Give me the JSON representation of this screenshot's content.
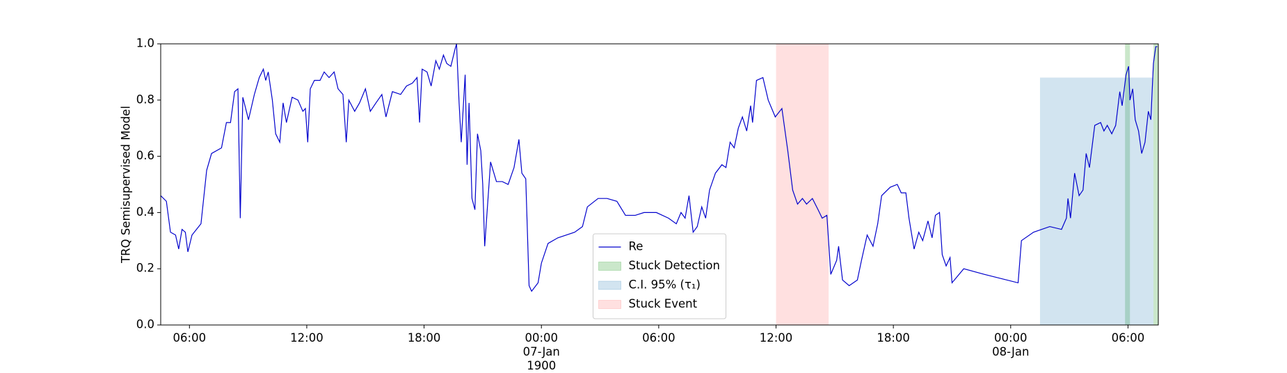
{
  "chart_data": {
    "type": "line",
    "ylabel": "TRQ Semisupervised Model",
    "x": [
      4.53,
      4.82,
      5.03,
      5.29,
      5.45,
      5.62,
      5.79,
      5.92,
      6.13,
      6.59,
      6.88,
      7.13,
      7.64,
      7.89,
      8.1,
      8.31,
      8.48,
      8.6,
      8.73,
      9.02,
      9.32,
      9.57,
      9.78,
      9.9,
      10.03,
      10.24,
      10.41,
      10.62,
      10.79,
      10.96,
      11.25,
      11.55,
      11.8,
      11.93,
      12.05,
      12.18,
      12.39,
      12.68,
      12.89,
      13.14,
      13.4,
      13.6,
      13.85,
      14.02,
      14.15,
      14.45,
      14.7,
      15.0,
      15.25,
      15.54,
      15.84,
      16.05,
      16.38,
      16.8,
      17.1,
      17.4,
      17.64,
      17.77,
      17.9,
      18.15,
      18.36,
      18.6,
      18.78,
      18.99,
      19.16,
      19.37,
      19.58,
      19.66,
      19.79,
      19.9,
      20.1,
      20.2,
      20.3,
      20.45,
      20.6,
      20.73,
      20.9,
      21.0,
      21.1,
      21.4,
      21.7,
      22.0,
      22.3,
      22.6,
      22.85,
      23.0,
      23.2,
      23.37,
      23.5,
      23.83,
      24.0,
      24.34,
      24.84,
      25.7,
      26.1,
      26.35,
      26.9,
      27.36,
      27.86,
      28.3,
      28.8,
      29.25,
      29.88,
      30.5,
      30.9,
      31.14,
      31.35,
      31.55,
      31.76,
      31.97,
      32.2,
      32.4,
      32.6,
      32.9,
      33.23,
      33.44,
      33.65,
      33.86,
      34.07,
      34.28,
      34.5,
      34.7,
      34.8,
      35.0,
      35.33,
      35.6,
      35.96,
      36.3,
      36.6,
      36.85,
      37.1,
      37.35,
      37.56,
      37.86,
      38.15,
      38.36,
      38.6,
      38.8,
      39.1,
      39.2,
      39.4,
      39.74,
      40.16,
      40.37,
      40.66,
      40.96,
      41.2,
      41.4,
      41.84,
      42.2,
      42.4,
      42.64,
      42.8,
      43.06,
      43.3,
      43.5,
      43.77,
      43.98,
      44.15,
      44.36,
      44.5,
      44.7,
      44.9,
      45.0,
      45.6,
      46.66,
      48.38,
      48.55,
      49.17,
      50.0,
      50.6,
      50.85,
      50.93,
      51.06,
      51.27,
      51.5,
      51.7,
      51.86,
      52.03,
      52.3,
      52.6,
      52.77,
      52.94,
      53.17,
      53.37,
      53.58,
      53.7,
      53.9,
      54.03,
      54.1,
      54.24,
      54.37,
      54.54,
      54.7,
      54.87,
      55.04,
      55.17,
      55.3,
      55.42,
      55.5
    ],
    "series": [
      {
        "name": "Re",
        "color": "#0000cc",
        "values": [
          0.46,
          0.44,
          0.33,
          0.32,
          0.27,
          0.34,
          0.33,
          0.26,
          0.32,
          0.36,
          0.55,
          0.61,
          0.63,
          0.72,
          0.72,
          0.83,
          0.84,
          0.38,
          0.81,
          0.73,
          0.82,
          0.88,
          0.91,
          0.87,
          0.9,
          0.8,
          0.68,
          0.65,
          0.79,
          0.72,
          0.81,
          0.8,
          0.76,
          0.77,
          0.65,
          0.84,
          0.87,
          0.87,
          0.9,
          0.88,
          0.9,
          0.84,
          0.82,
          0.65,
          0.8,
          0.76,
          0.79,
          0.84,
          0.76,
          0.79,
          0.82,
          0.74,
          0.83,
          0.82,
          0.85,
          0.86,
          0.88,
          0.72,
          0.91,
          0.9,
          0.85,
          0.94,
          0.91,
          0.96,
          0.93,
          0.92,
          0.98,
          1.0,
          0.79,
          0.65,
          0.89,
          0.57,
          0.79,
          0.45,
          0.41,
          0.68,
          0.62,
          0.5,
          0.28,
          0.58,
          0.51,
          0.51,
          0.5,
          0.56,
          0.66,
          0.54,
          0.52,
          0.14,
          0.12,
          0.15,
          0.22,
          0.29,
          0.31,
          0.33,
          0.35,
          0.42,
          0.45,
          0.45,
          0.44,
          0.39,
          0.39,
          0.4,
          0.4,
          0.38,
          0.36,
          0.4,
          0.38,
          0.46,
          0.33,
          0.35,
          0.42,
          0.38,
          0.48,
          0.54,
          0.57,
          0.56,
          0.65,
          0.63,
          0.7,
          0.74,
          0.69,
          0.78,
          0.72,
          0.87,
          0.88,
          0.8,
          0.74,
          0.77,
          0.62,
          0.48,
          0.43,
          0.45,
          0.43,
          0.45,
          0.41,
          0.38,
          0.39,
          0.18,
          0.23,
          0.28,
          0.16,
          0.14,
          0.16,
          0.23,
          0.32,
          0.28,
          0.36,
          0.46,
          0.49,
          0.5,
          0.47,
          0.47,
          0.38,
          0.27,
          0.33,
          0.3,
          0.37,
          0.31,
          0.39,
          0.4,
          0.25,
          0.21,
          0.24,
          0.15,
          0.2,
          0.18,
          0.15,
          0.3,
          0.33,
          0.35,
          0.34,
          0.38,
          0.45,
          0.38,
          0.54,
          0.46,
          0.48,
          0.61,
          0.56,
          0.71,
          0.72,
          0.69,
          0.71,
          0.68,
          0.71,
          0.83,
          0.78,
          0.89,
          0.92,
          0.8,
          0.84,
          0.73,
          0.69,
          0.61,
          0.65,
          0.76,
          0.73,
          0.93,
          0.99,
          0.99
        ]
      }
    ],
    "spans": [
      {
        "name": "Stuck Detection",
        "color": "#2ca02c",
        "alpha": 0.25,
        "ranges": [
          [
            53.85,
            54.1
          ],
          [
            55.3,
            55.55
          ]
        ]
      },
      {
        "name": "C.I. 95% (τ₁)",
        "color": "#1f77b4",
        "alpha": 0.2,
        "ranges": [
          [
            49.5,
            55.3
          ]
        ],
        "ymax": 0.88
      },
      {
        "name": "Stuck Event",
        "color": "#ff0000",
        "alpha": 0.12,
        "ranges": [
          [
            36.0,
            38.69
          ]
        ]
      }
    ],
    "xlim": [
      4.53,
      55.55
    ],
    "xticks": [
      {
        "value": 6,
        "label": "06:00"
      },
      {
        "value": 12,
        "label": "12:00"
      },
      {
        "value": 18,
        "label": "18:00"
      },
      {
        "value": 24,
        "label": "00:00\n07-Jan\n1900"
      },
      {
        "value": 30,
        "label": "06:00"
      },
      {
        "value": 36,
        "label": "12:00"
      },
      {
        "value": 42,
        "label": "18:00"
      },
      {
        "value": 48,
        "label": "00:00\n08-Jan"
      },
      {
        "value": 54,
        "label": "06:00"
      }
    ],
    "ylim": [
      0,
      1
    ],
    "yticks": [
      {
        "value": 0,
        "label": "0.0"
      },
      0.2,
      0.4,
      0.6,
      0.8,
      {
        "value": 1,
        "label": "1.0"
      }
    ],
    "grid": false,
    "legend": "lower center"
  }
}
